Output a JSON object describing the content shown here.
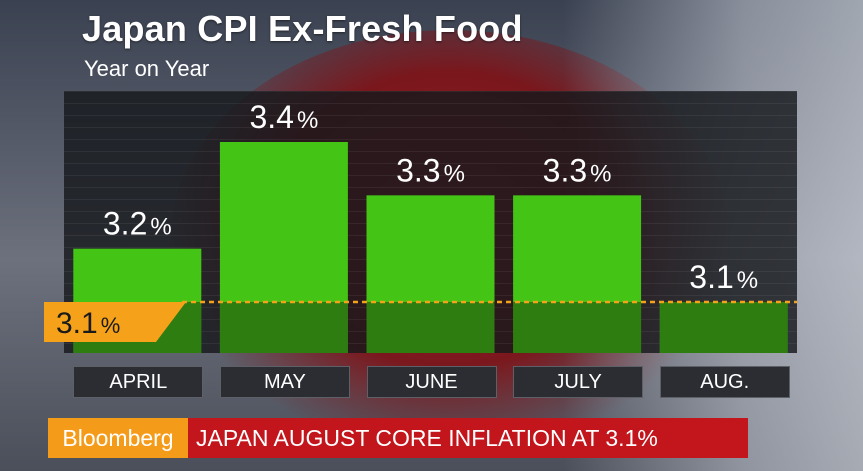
{
  "title": "Japan CPI Ex-Fresh Food",
  "subtitle": "Year on Year",
  "ticker": {
    "brand": "Bloomberg",
    "headline": "JAPAN AUGUST CORE INFLATION AT 3.1%"
  },
  "colors": {
    "bar": "#44c414",
    "reference": "#f5a21a",
    "ticker_bg": "#c3161c",
    "brand_bg": "#f59b1a"
  },
  "chart_data": {
    "type": "bar",
    "title": "Japan CPI Ex-Fresh Food",
    "subtitle": "Year on Year",
    "categories": [
      "APRIL",
      "MAY",
      "JUNE",
      "JULY",
      "AUG."
    ],
    "values": [
      3.2,
      3.4,
      3.3,
      3.3,
      3.1
    ],
    "value_labels": [
      "3.2%",
      "3.4%",
      "3.3%",
      "3.3%",
      "3.1%"
    ],
    "reference_line": {
      "value": 3.1,
      "label": "3.1%"
    },
    "ylim": [
      3.0,
      3.45
    ],
    "grid": true
  }
}
